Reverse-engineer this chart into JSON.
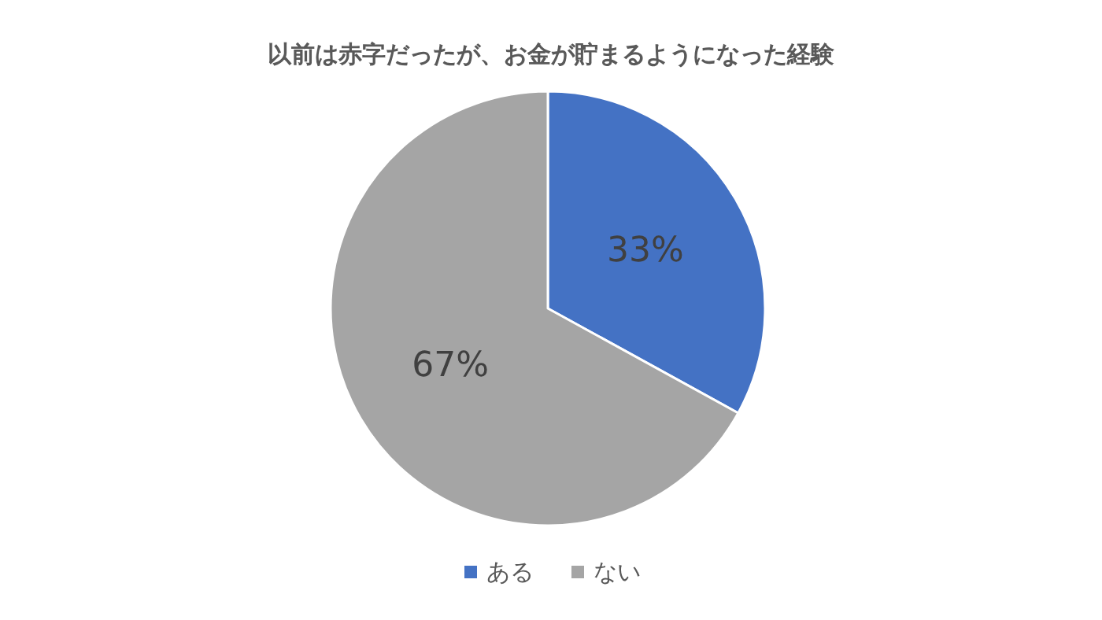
{
  "chart_data": {
    "type": "pie",
    "title": "以前は赤字だったが、お金が貯まるようになった経験",
    "categories": [
      "ある",
      "ない"
    ],
    "values": [
      33,
      67
    ],
    "colors": [
      "#4472c4",
      "#a5a5a5"
    ],
    "value_labels": [
      "33%",
      "67%"
    ],
    "legend": "bottom"
  }
}
